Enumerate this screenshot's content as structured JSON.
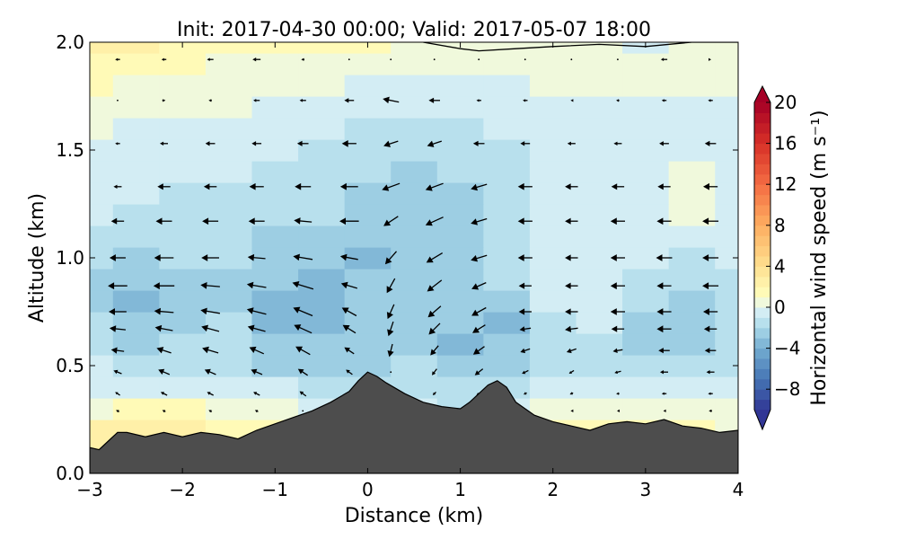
{
  "chart_data": {
    "type": "contour",
    "title": "Init: 2017-04-30 00:00; Valid: 2017-05-07 18:00",
    "xlabel": "Distance (km)",
    "ylabel": "Altitude (km)",
    "xlim": [
      -3,
      4
    ],
    "ylim": [
      0,
      2
    ],
    "x_ticks": [
      -3,
      -2,
      -1,
      0,
      1,
      2,
      3,
      4
    ],
    "x_tick_labels": [
      "−3",
      "−2",
      "−1",
      "0",
      "1",
      "2",
      "3",
      "4"
    ],
    "y_ticks": [
      0.0,
      0.5,
      1.0,
      1.5,
      2.0
    ],
    "y_tick_labels": [
      "0.0",
      "0.5",
      "1.0",
      "1.5",
      "2.0"
    ],
    "grid": false,
    "colorbar": {
      "label": "Horizontal wind speed (m s⁻¹)",
      "range": [
        -10,
        20
      ],
      "extend": "both",
      "ticks": [
        20,
        16,
        12,
        8,
        4,
        0,
        -4,
        -8
      ],
      "tick_labels": [
        "20",
        "16",
        "12",
        "8",
        "4",
        "0",
        "−4",
        "−8"
      ],
      "colormap": "RdYlBu_r"
    },
    "terrain": {
      "color": "#4d4d4d",
      "x": [
        -3.0,
        -2.9,
        -2.8,
        -2.7,
        -2.6,
        -2.4,
        -2.2,
        -2.0,
        -1.8,
        -1.6,
        -1.4,
        -1.2,
        -1.0,
        -0.8,
        -0.6,
        -0.4,
        -0.2,
        -0.1,
        0.0,
        0.1,
        0.2,
        0.4,
        0.6,
        0.8,
        1.0,
        1.1,
        1.2,
        1.3,
        1.4,
        1.5,
        1.6,
        1.8,
        2.0,
        2.2,
        2.4,
        2.6,
        2.8,
        3.0,
        3.2,
        3.4,
        3.6,
        3.8,
        4.0
      ],
      "y": [
        0.12,
        0.11,
        0.15,
        0.19,
        0.19,
        0.17,
        0.19,
        0.17,
        0.19,
        0.18,
        0.16,
        0.2,
        0.23,
        0.26,
        0.29,
        0.33,
        0.38,
        0.43,
        0.47,
        0.45,
        0.42,
        0.37,
        0.33,
        0.31,
        0.3,
        0.33,
        0.37,
        0.41,
        0.43,
        0.4,
        0.33,
        0.27,
        0.24,
        0.22,
        0.2,
        0.23,
        0.24,
        0.23,
        0.25,
        0.22,
        0.21,
        0.19,
        0.2
      ]
    },
    "zero_contour_top": {
      "x": [
        0.6,
        1.0,
        1.2,
        1.6,
        2.0,
        2.5,
        3.0,
        3.5,
        4.0
      ],
      "y": [
        2.0,
        1.97,
        1.96,
        1.97,
        1.98,
        1.99,
        1.98,
        2.0,
        2.0
      ]
    },
    "speed_field": {
      "x": [
        -3.0,
        -2.5,
        -2.0,
        -1.5,
        -1.0,
        -0.5,
        0.0,
        0.5,
        1.0,
        1.5,
        2.0,
        2.5,
        3.0,
        3.5,
        4.0
      ],
      "altitudes": [
        0.2,
        0.3,
        0.4,
        0.5,
        0.6,
        0.7,
        0.8,
        0.9,
        1.0,
        1.1,
        1.2,
        1.3,
        1.4,
        1.5,
        1.6,
        1.7,
        1.8,
        1.9,
        2.0
      ],
      "values": [
        [
          2.0,
          2.0,
          2.0,
          1.5,
          1.0,
          0.5,
          -0.5,
          -0.5,
          -0.5,
          -0.5,
          1.0,
          1.5,
          1.5,
          1.0,
          0.5
        ],
        [
          0.5,
          1.0,
          1.0,
          0.5,
          0.0,
          -1.0,
          -1.5,
          -1.0,
          -1.5,
          -1.0,
          0.5,
          0.5,
          0.5,
          0.0,
          0.0
        ],
        [
          -0.5,
          -0.5,
          -0.5,
          -0.5,
          -1.0,
          -1.5,
          -2.0,
          -1.5,
          -2.0,
          -1.5,
          -0.5,
          -1.0,
          -1.0,
          -0.5,
          -0.5
        ],
        [
          -1.0,
          -1.5,
          -1.5,
          -2.0,
          -2.5,
          -2.5,
          -2.5,
          -2.0,
          -3.0,
          -2.5,
          -1.5,
          -1.5,
          -2.0,
          -2.0,
          -1.5
        ],
        [
          -2.0,
          -2.5,
          -2.0,
          -2.0,
          -3.0,
          -3.0,
          -2.5,
          -2.5,
          -3.5,
          -3.0,
          -1.5,
          -1.5,
          -2.5,
          -2.5,
          -2.0
        ],
        [
          -2.0,
          -3.0,
          -2.5,
          -2.0,
          -3.5,
          -3.5,
          -3.0,
          -2.5,
          -3.0,
          -3.5,
          -1.5,
          -1.0,
          -2.5,
          -2.5,
          -2.0
        ],
        [
          -2.5,
          -3.5,
          -2.5,
          -2.5,
          -3.5,
          -3.5,
          -3.0,
          -3.0,
          -2.5,
          -2.5,
          -1.0,
          -1.0,
          -2.0,
          -2.5,
          -2.0
        ],
        [
          -2.5,
          -3.0,
          -2.5,
          -2.5,
          -3.0,
          -3.5,
          -3.0,
          -3.0,
          -2.5,
          -2.0,
          -1.0,
          -1.0,
          -1.5,
          -2.0,
          -1.5
        ],
        [
          -2.0,
          -2.5,
          -2.0,
          -2.0,
          -2.5,
          -3.0,
          -3.5,
          -3.0,
          -2.5,
          -2.0,
          -1.0,
          -1.0,
          -1.0,
          -1.5,
          -1.0
        ],
        [
          -1.5,
          -2.0,
          -2.0,
          -2.0,
          -2.5,
          -2.5,
          -3.0,
          -3.0,
          -2.5,
          -2.0,
          -1.0,
          -1.0,
          -1.0,
          -1.0,
          -0.5
        ],
        [
          -1.0,
          -1.5,
          -1.5,
          -2.0,
          -1.5,
          -2.0,
          -2.5,
          -2.5,
          -2.5,
          -2.0,
          -1.0,
          -1.0,
          -0.5,
          0.0,
          -0.5
        ],
        [
          -0.5,
          -1.0,
          -1.5,
          -1.5,
          -1.5,
          -2.0,
          -2.5,
          -2.5,
          -2.5,
          -2.0,
          -1.0,
          -1.0,
          -0.5,
          0.5,
          -0.5
        ],
        [
          -0.5,
          -1.0,
          -1.0,
          -1.0,
          -1.5,
          -2.0,
          -2.0,
          -2.5,
          -2.0,
          -1.5,
          -1.0,
          -0.5,
          -0.5,
          0.0,
          -0.5
        ],
        [
          -0.5,
          -0.5,
          -0.5,
          -0.5,
          -1.0,
          -1.5,
          -2.0,
          -2.0,
          -2.0,
          -1.5,
          -1.0,
          -0.5,
          -0.5,
          -0.5,
          -0.5
        ],
        [
          0.0,
          -0.5,
          -0.5,
          -0.5,
          -1.0,
          -1.0,
          -1.5,
          -1.5,
          -1.5,
          -1.0,
          -0.5,
          -0.5,
          -0.5,
          -0.5,
          -0.5
        ],
        [
          0.5,
          0.0,
          0.0,
          0.0,
          -0.5,
          -0.5,
          -1.0,
          -1.0,
          -1.0,
          -0.5,
          -0.5,
          -0.5,
          -0.5,
          -0.5,
          -0.5
        ],
        [
          1.0,
          0.5,
          0.5,
          0.5,
          0.0,
          0.0,
          -0.5,
          -0.5,
          -0.5,
          -0.5,
          0.0,
          0.0,
          0.0,
          0.0,
          0.0
        ],
        [
          1.5,
          1.0,
          1.0,
          0.5,
          0.5,
          0.5,
          0.5,
          0.5,
          0.5,
          0.5,
          0.5,
          0.5,
          0.5,
          0.5,
          0.5
        ],
        [
          2.0,
          2.0,
          1.5,
          1.5,
          1.5,
          1.5,
          1.0,
          0.5,
          0.0,
          0.0,
          0.0,
          0.0,
          -0.5,
          0.0,
          0.0
        ]
      ]
    },
    "wind_vectors": {
      "x": [
        -2.7,
        -2.2,
        -1.7,
        -1.2,
        -0.7,
        -0.2,
        0.25,
        0.72,
        1.2,
        1.7,
        2.2,
        2.7,
        3.2,
        3.7
      ],
      "rows": [
        {
          "y": 1.92,
          "u": [
            -0.3,
            -0.3,
            -0.4,
            -0.5,
            -0.2,
            0.0,
            0.0,
            0.0,
            0.0,
            0.0,
            0.0,
            0.0,
            -0.4,
            0.1
          ],
          "w": [
            0.0,
            0.0,
            0.0,
            0.0,
            0.0,
            0.0,
            0.0,
            0.0,
            0.0,
            0.0,
            0.0,
            0.0,
            0.0,
            0.0
          ]
        },
        {
          "y": 1.73,
          "u": [
            0.0,
            0.2,
            -0.2,
            -0.4,
            -0.4,
            -0.6,
            -1.0,
            -0.7,
            -0.3,
            -0.3,
            -0.1,
            -0.2,
            -0.3,
            -0.3
          ],
          "w": [
            0.0,
            0.0,
            0.0,
            0.0,
            0.0,
            0.0,
            0.2,
            0.0,
            0.0,
            0.0,
            0.0,
            0.0,
            0.0,
            0.0
          ]
        },
        {
          "y": 1.53,
          "u": [
            -0.3,
            -0.5,
            -0.6,
            -0.6,
            -0.7,
            -0.9,
            -0.9,
            -0.9,
            -0.7,
            -0.6,
            -0.5,
            -0.5,
            -0.6,
            -0.7
          ],
          "w": [
            0.0,
            0.0,
            0.0,
            0.0,
            0.0,
            0.0,
            -0.3,
            -0.3,
            0.0,
            0.0,
            0.0,
            0.0,
            0.0,
            0.0
          ]
        },
        {
          "y": 1.33,
          "u": [
            -0.5,
            -0.8,
            -0.8,
            -0.9,
            -1.0,
            -1.1,
            -1.1,
            -1.1,
            -1.0,
            -0.9,
            -0.8,
            -0.8,
            -0.8,
            -0.9
          ],
          "w": [
            0.0,
            0.0,
            0.0,
            0.0,
            0.0,
            0.0,
            -0.4,
            -0.4,
            -0.3,
            0.0,
            0.0,
            0.0,
            0.0,
            0.0
          ]
        },
        {
          "y": 1.17,
          "u": [
            -0.8,
            -1.0,
            -1.0,
            -1.0,
            -1.1,
            -1.2,
            -0.9,
            -1.1,
            -1.0,
            -0.9,
            -0.8,
            -0.9,
            -0.9,
            -1.0
          ],
          "w": [
            0.0,
            0.0,
            0.0,
            0.0,
            0.1,
            0.0,
            -0.6,
            -0.5,
            -0.3,
            0.0,
            0.0,
            0.0,
            0.0,
            0.0
          ]
        },
        {
          "y": 1.0,
          "u": [
            -1.0,
            -1.2,
            -1.1,
            -1.1,
            -1.2,
            -1.1,
            -0.7,
            -1.0,
            -1.0,
            -0.9,
            -0.8,
            -0.9,
            -1.0,
            -1.0
          ],
          "w": [
            0.0,
            0.0,
            0.0,
            0.1,
            0.2,
            0.2,
            -0.8,
            -0.6,
            -0.3,
            0.0,
            0.0,
            0.0,
            0.0,
            0.0
          ]
        },
        {
          "y": 0.87,
          "u": [
            -1.2,
            -1.3,
            -1.2,
            -1.2,
            -1.3,
            -1.0,
            -0.5,
            -0.9,
            -0.9,
            -0.8,
            -0.8,
            -0.9,
            -0.9,
            -1.0
          ],
          "w": [
            0.0,
            0.0,
            0.1,
            0.2,
            0.4,
            0.3,
            -0.9,
            -0.7,
            -0.4,
            0.0,
            0.0,
            0.0,
            0.0,
            0.0
          ]
        },
        {
          "y": 0.75,
          "u": [
            -1.1,
            -1.2,
            -1.2,
            -1.2,
            -1.2,
            -0.9,
            -0.4,
            -0.8,
            -0.9,
            -0.8,
            -0.8,
            -0.9,
            -0.9,
            -0.9
          ],
          "w": [
            0.0,
            0.1,
            0.2,
            0.3,
            0.5,
            0.5,
            -0.9,
            -0.7,
            -0.5,
            0.0,
            0.0,
            0.0,
            0.0,
            0.0
          ]
        },
        {
          "y": 0.67,
          "u": [
            -1.0,
            -1.1,
            -1.1,
            -1.1,
            -1.1,
            -0.8,
            -0.3,
            -0.7,
            -0.8,
            -0.7,
            -0.8,
            -0.8,
            -0.9,
            -0.8
          ],
          "w": [
            0.1,
            0.2,
            0.3,
            0.3,
            0.5,
            0.5,
            -0.9,
            -0.7,
            -0.5,
            -0.1,
            -0.1,
            0.0,
            0.0,
            0.0
          ]
        },
        {
          "y": 0.57,
          "u": [
            -0.8,
            -0.9,
            -1.0,
            -0.9,
            -0.9,
            -0.6,
            -0.2,
            -0.5,
            -0.7,
            -0.6,
            -0.6,
            -0.6,
            -0.7,
            -0.7
          ],
          "w": [
            0.1,
            0.3,
            0.3,
            0.4,
            0.5,
            0.4,
            -0.8,
            -0.6,
            -0.5,
            -0.2,
            -0.2,
            -0.1,
            0.0,
            0.0
          ]
        },
        {
          "y": 0.47,
          "u": [
            -0.5,
            -0.7,
            -0.7,
            -0.7,
            -0.6,
            -0.4,
            0.0,
            -0.3,
            -0.5,
            -0.4,
            -0.3,
            -0.4,
            -0.5,
            -0.5
          ],
          "w": [
            0.2,
            0.3,
            0.3,
            0.3,
            0.4,
            0.3,
            0.0,
            -0.4,
            -0.4,
            -0.2,
            -0.2,
            -0.1,
            0.0,
            0.0
          ]
        },
        {
          "y": 0.37,
          "u": [
            -0.3,
            -0.4,
            -0.4,
            -0.4,
            -0.4,
            0.0,
            0.0,
            -0.2,
            -0.3,
            -0.2,
            -0.2,
            -0.2,
            -0.3,
            -0.3
          ],
          "w": [
            0.2,
            0.2,
            0.2,
            0.2,
            0.3,
            0.0,
            0.0,
            -0.2,
            -0.2,
            -0.1,
            -0.1,
            0.0,
            0.0,
            0.0
          ]
        },
        {
          "y": 0.29,
          "u": [
            -0.2,
            -0.2,
            -0.2,
            -0.2,
            0.0,
            0.0,
            0.0,
            0.0,
            0.0,
            -0.1,
            -0.1,
            -0.1,
            -0.1,
            -0.2
          ],
          "w": [
            0.1,
            0.1,
            0.1,
            0.1,
            0.0,
            0.0,
            0.0,
            0.0,
            0.0,
            0.0,
            0.0,
            0.0,
            0.0,
            0.0
          ]
        }
      ]
    }
  }
}
